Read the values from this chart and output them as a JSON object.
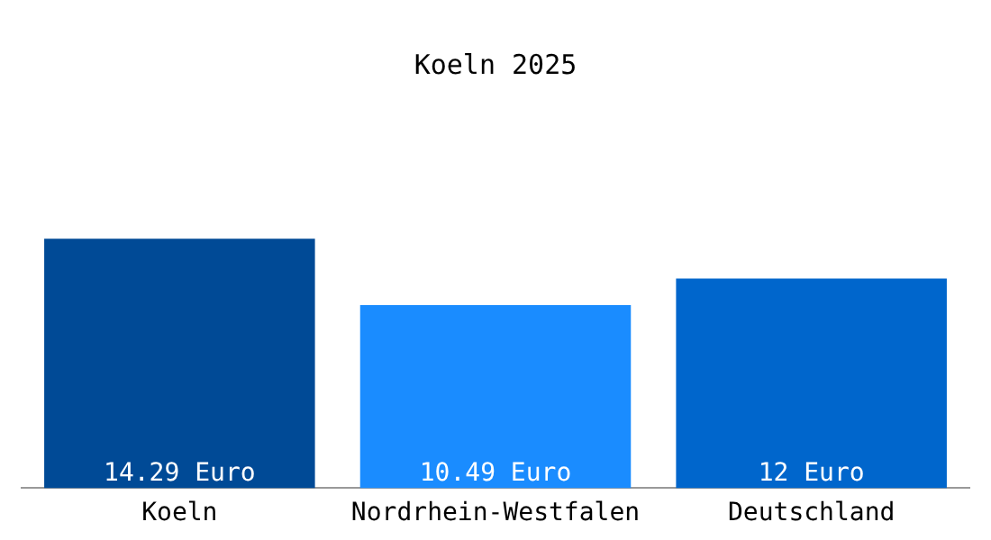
{
  "chart_data": {
    "type": "bar",
    "title": "Koeln 2025",
    "categories": [
      "Koeln",
      "Nordrhein-Westfalen",
      "Deutschland"
    ],
    "values": [
      14.29,
      10.49,
      12
    ],
    "colors": [
      "#004a96",
      "#1a8cff",
      "#0066cc"
    ],
    "value_labels": [
      "14.29 Euro",
      "10.49 Euro",
      "12 Euro"
    ],
    "tick_labels": "x",
    "grid": false,
    "legend": false
  }
}
